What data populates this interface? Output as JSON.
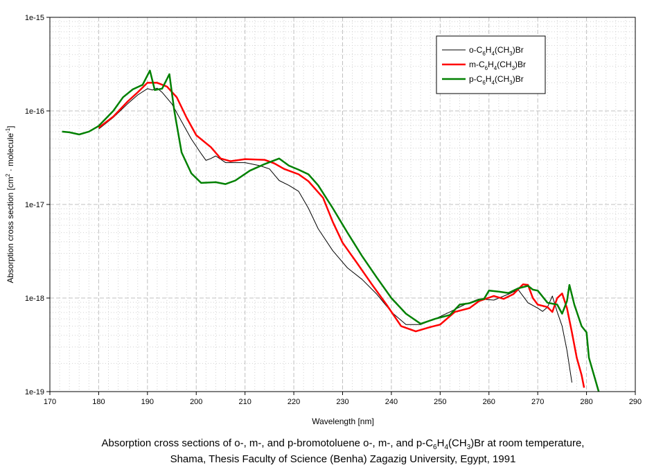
{
  "chart_data": {
    "type": "line",
    "title": "",
    "xlabel": "Wavelength [nm]",
    "ylabel": "Absorption cross section [cm² · molecule⁻¹]",
    "ylabel_parts": {
      "main": "Absorption cross section [cm",
      "sup1": "2",
      "mid": " · molecule",
      "sup2": "-1",
      "end": "]"
    },
    "xlim": [
      170,
      290
    ],
    "ylim": [
      1e-19,
      1e-15
    ],
    "yscale": "log",
    "grid": true,
    "legend_position": "top-right",
    "x_ticks": [
      "170",
      "180",
      "190",
      "200",
      "210",
      "220",
      "230",
      "240",
      "250",
      "260",
      "270",
      "280",
      "290"
    ],
    "y_ticks": [
      "1e-15",
      "1e-16",
      "1e-17",
      "1e-18",
      "1e-19"
    ],
    "series": [
      {
        "name": "o-C6H4(CH3)Br",
        "label": {
          "a": "o-C",
          "b": "6",
          "c": "H",
          "d": "4",
          "e": "(CH",
          "f": "3",
          "g": ")Br"
        },
        "color": "#000000",
        "x": [
          180,
          183,
          186,
          188,
          190,
          191,
          192,
          193,
          195,
          197,
          199,
          201,
          202,
          203,
          204,
          206,
          210,
          213,
          215,
          217,
          219,
          221,
          223,
          225,
          228,
          231,
          234,
          237,
          240,
          243,
          246,
          249,
          252,
          255,
          258,
          261,
          264,
          266,
          268,
          270,
          271,
          272,
          273,
          274,
          275,
          276,
          277
        ],
        "y": [
          6.4e-17,
          8.5e-17,
          1.2e-16,
          1.48e-16,
          1.73e-16,
          1.67e-16,
          1.75e-16,
          1.58e-16,
          1.19e-16,
          7.7e-17,
          5e-17,
          3.5e-17,
          2.96e-17,
          3.1e-17,
          3.3e-17,
          2.8e-17,
          2.8e-17,
          2.6e-17,
          2.4e-17,
          1.8e-17,
          1.6e-17,
          1.38e-17,
          9.1e-18,
          5.5e-18,
          3.2e-18,
          2.1e-18,
          1.58e-18,
          1.1e-18,
          7.1e-19,
          5.2e-19,
          5.2e-19,
          6e-19,
          7.1e-19,
          8.5e-19,
          9.8e-19,
          9.5e-19,
          1.1e-18,
          1.23e-18,
          8.9e-19,
          7.8e-19,
          7.2e-19,
          8e-19,
          1.05e-18,
          7.1e-19,
          5e-19,
          2.75e-19,
          1.25e-19
        ]
      },
      {
        "name": "m-C6H4(CH3)Br",
        "label": {
          "a": "m-C",
          "b": "6",
          "c": "H",
          "d": "4",
          "e": "(CH",
          "f": "3",
          "g": ")Br"
        },
        "color": "#ff0000",
        "x": [
          180,
          183,
          186,
          188,
          190,
          192,
          194,
          196,
          198,
          200,
          203,
          205,
          207,
          210,
          214,
          216,
          218,
          221,
          223,
          226,
          228,
          230,
          233,
          236,
          239,
          242,
          245,
          248,
          250,
          253,
          256,
          258,
          261,
          263,
          265,
          267,
          268,
          269,
          270,
          272,
          273,
          274,
          275,
          276,
          277,
          278,
          279,
          279.5
        ],
        "y": [
          6.6e-17,
          8.7e-17,
          1.27e-16,
          1.58e-16,
          2e-16,
          2e-16,
          1.82e-16,
          1.4e-16,
          8.5e-17,
          5.5e-17,
          4.1e-17,
          3.1e-17,
          2.9e-17,
          3.05e-17,
          3e-17,
          2.75e-17,
          2.4e-17,
          2.1e-17,
          1.77e-17,
          1.18e-17,
          6.5e-18,
          3.9e-18,
          2.35e-18,
          1.4e-18,
          8.5e-19,
          5e-19,
          4.4e-19,
          4.9e-19,
          5.2e-19,
          7.1e-19,
          7.8e-19,
          9.3e-19,
          1.05e-18,
          9.8e-19,
          1.1e-18,
          1.4e-18,
          1.38e-18,
          1e-18,
          8.5e-19,
          8e-19,
          7.1e-19,
          1e-18,
          1.12e-18,
          7.8e-19,
          4.3e-19,
          2.3e-19,
          1.5e-19,
          1.1e-19
        ]
      },
      {
        "name": "p-C6H4(CH3)Br",
        "label": {
          "a": "p-C",
          "b": "6",
          "c": "H",
          "d": "4",
          "e": "(CH",
          "f": "3",
          "g": ")Br"
        },
        "color": "#008000",
        "x": [
          172.5,
          174,
          176,
          178,
          180,
          183,
          185,
          187,
          189,
          190.5,
          191.5,
          193,
          194.5,
          195.5,
          197,
          199,
          201,
          204,
          206,
          208,
          211,
          214,
          217,
          219,
          221,
          223,
          225,
          228,
          231,
          234,
          237,
          240,
          243,
          246,
          249,
          252,
          254,
          256,
          258,
          259,
          260,
          262,
          264,
          266,
          268,
          269,
          270,
          272,
          274,
          275,
          276,
          276.5,
          277.5,
          279,
          280,
          280.5,
          282.5
        ],
        "y": [
          6e-17,
          5.9e-17,
          5.6e-17,
          6e-17,
          6.9e-17,
          1e-16,
          1.4e-16,
          1.7e-16,
          1.9e-16,
          2.7e-16,
          1.67e-16,
          1.73e-16,
          2.47e-16,
          1e-16,
          3.6e-17,
          2.15e-17,
          1.7e-17,
          1.73e-17,
          1.65e-17,
          1.8e-17,
          2.3e-17,
          2.7e-17,
          3.1e-17,
          2.6e-17,
          2.35e-17,
          2.1e-17,
          1.6e-17,
          9.1e-18,
          5e-18,
          2.8e-18,
          1.66e-18,
          1e-18,
          6.8e-19,
          5.3e-19,
          6e-19,
          6.6e-19,
          8.5e-19,
          8.8e-19,
          9.6e-19,
          9.8e-19,
          1.2e-18,
          1.17e-18,
          1.13e-18,
          1.27e-18,
          1.35e-18,
          1.23e-18,
          1.2e-18,
          8.9e-19,
          8.5e-19,
          6.8e-19,
          9.3e-19,
          1.38e-18,
          8.5e-19,
          5e-19,
          4.3e-19,
          2.3e-19,
          1e-19
        ]
      }
    ]
  },
  "caption": {
    "line1_pre": "Absorption cross sections of o-, m-, and p-bromotoluene o-, m-, and p-C",
    "line1_sub1": "6",
    "line1_mid1": "H",
    "line1_sub2": "4",
    "line1_mid2": "(CH",
    "line1_sub3": "3",
    "line1_post": ")Br at room temperature,",
    "line2": "Shama, Thesis Faculty of Science (Benha) Zagazig University, Egypt, 1991"
  }
}
